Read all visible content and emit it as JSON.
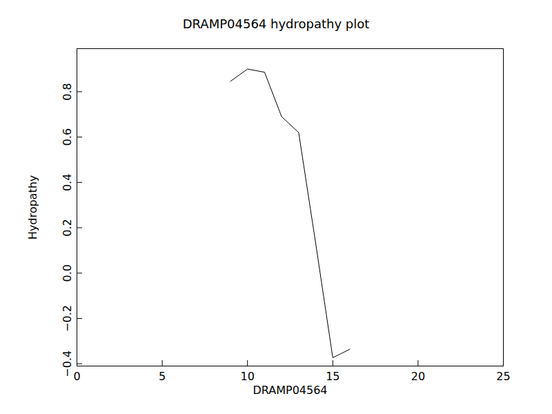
{
  "chart_data": {
    "type": "line",
    "title": "DRAMP04564 hydropathy plot",
    "x_label": "DRAMP04564",
    "y_label": "Hydropathy",
    "x": [
      9,
      10,
      11,
      12,
      13,
      14,
      15,
      16
    ],
    "values": [
      0.846,
      0.9,
      0.886,
      0.69,
      0.62,
      0.13,
      -0.373,
      -0.336
    ],
    "color": "#000000",
    "xlim": [
      0,
      25
    ],
    "xticks": [
      0,
      5,
      10,
      15,
      20,
      25
    ],
    "ylim": [
      -0.41,
      0.99
    ],
    "yticks": [
      {
        "value": -0.4,
        "label": "−0.4"
      },
      {
        "value": -0.2,
        "label": "−0.2"
      },
      {
        "value": 0,
        "label": "0.0"
      },
      0.2,
      0.4,
      0.6,
      0.8
    ],
    "grid": false
  }
}
